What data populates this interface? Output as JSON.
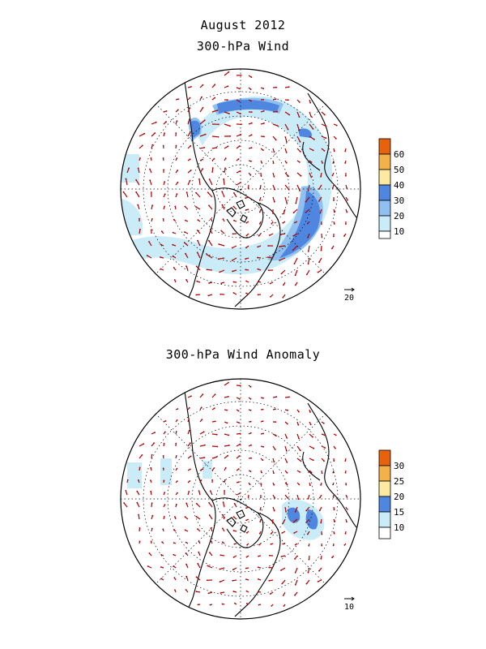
{
  "titles": {
    "main": "August 2012",
    "panel1": "300-hPa Wind",
    "panel2": "300-hPa Wind Anomaly"
  },
  "panels": [
    {
      "colorbar": {
        "labels": [
          "60",
          "50",
          "40",
          "30",
          "20",
          "10"
        ],
        "colors": [
          "#e8620e",
          "#f5b04a",
          "#fde9a2",
          "#4f86e0",
          "#8fc0f0",
          "#c9ecf8",
          "#ffffff"
        ]
      },
      "reference_vector": "20"
    },
    {
      "colorbar": {
        "labels": [
          "30",
          "25",
          "20",
          "15",
          "10"
        ],
        "colors": [
          "#e8620e",
          "#f5b04a",
          "#fde9a2",
          "#4f86e0",
          "#c9ecf8",
          "#ffffff"
        ]
      },
      "reference_vector": "10"
    }
  ],
  "colors": {
    "vectors": "#b00000",
    "light_shade": "#c9ecf8",
    "mid_shade": "#8fc0f0",
    "dark_shade": "#4f86e0"
  }
}
